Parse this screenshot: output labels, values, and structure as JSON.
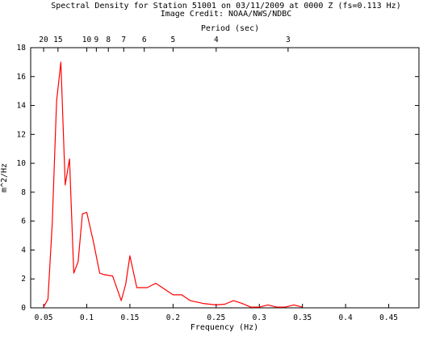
{
  "chart_data": {
    "type": "line",
    "title": "Spectral Density for Station 51001 on 03/11/2009 at 0000 Z (fs=0.113 Hz)",
    "subtitle": "Image Credit: NOAA/NWS/NDBC",
    "xlabel": "Frequency (Hz)",
    "ylabel": "m^2/Hz",
    "top_axis_label": "Period (sec)",
    "xlim": [
      0.035,
      0.485
    ],
    "ylim": [
      0,
      18
    ],
    "x_ticks": [
      0.05,
      0.1,
      0.15,
      0.2,
      0.25,
      0.3,
      0.35,
      0.4,
      0.45
    ],
    "x_tick_labels": [
      "0.05",
      "0.1",
      "0.15",
      "0.2",
      "0.25",
      "0.3",
      "0.35",
      "0.4",
      "0.45"
    ],
    "y_ticks": [
      0,
      2,
      4,
      6,
      8,
      10,
      12,
      14,
      16,
      18
    ],
    "y_tick_labels": [
      "0",
      "2",
      "4",
      "6",
      "8",
      "10",
      "12",
      "14",
      "16",
      "18"
    ],
    "period_ticks": [
      {
        "period": 20,
        "label": "20"
      },
      {
        "period": 15,
        "label": "15"
      },
      {
        "period": 10,
        "label": "10"
      },
      {
        "period": 9,
        "label": "9"
      },
      {
        "period": 8,
        "label": "8"
      },
      {
        "period": 7,
        "label": "7"
      },
      {
        "period": 6,
        "label": "6"
      },
      {
        "period": 5,
        "label": "5"
      },
      {
        "period": 4,
        "label": "4"
      },
      {
        "period": 3,
        "label": "3"
      }
    ],
    "line_color": "#ff0000",
    "series": [
      {
        "x": [
          0.05,
          0.055,
          0.06,
          0.065,
          0.07,
          0.075,
          0.08,
          0.085,
          0.09,
          0.095,
          0.1,
          0.108,
          0.115,
          0.12,
          0.13,
          0.14,
          0.145,
          0.15,
          0.158,
          0.17,
          0.18,
          0.19,
          0.2,
          0.21,
          0.22,
          0.235,
          0.25,
          0.26,
          0.27,
          0.28,
          0.29,
          0.3,
          0.31,
          0.32,
          0.33,
          0.34,
          0.35
        ],
        "y": [
          0.05,
          0.6,
          5.8,
          14.3,
          17.0,
          8.5,
          10.3,
          2.4,
          3.2,
          6.5,
          6.6,
          4.5,
          2.4,
          2.3,
          2.2,
          0.5,
          1.6,
          3.6,
          1.4,
          1.4,
          1.7,
          1.3,
          0.9,
          0.9,
          0.5,
          0.3,
          0.2,
          0.25,
          0.5,
          0.3,
          0.05,
          0.05,
          0.2,
          0.05,
          0.05,
          0.2,
          0.05
        ]
      }
    ]
  }
}
